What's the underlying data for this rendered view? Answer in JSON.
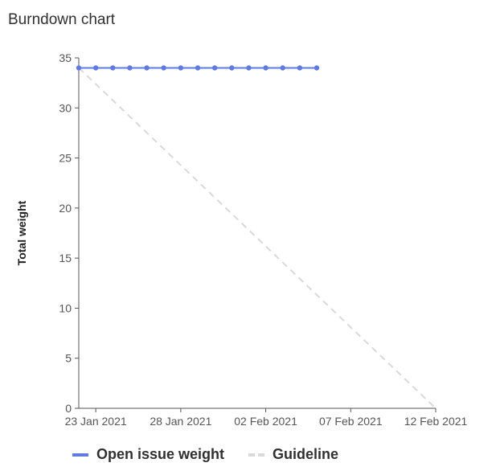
{
  "title": "Burndown chart",
  "colors": {
    "series": "#617ae2",
    "guideline": "#d9d9d9",
    "axis": "#555555"
  },
  "chart_data": {
    "type": "line",
    "title": "Burndown chart",
    "xlabel": "",
    "ylabel": "Total weight",
    "ylim": [
      0,
      35
    ],
    "y_ticks": [
      0,
      5,
      10,
      15,
      20,
      25,
      30,
      35
    ],
    "xlim": [
      "2021-01-22",
      "2021-02-12"
    ],
    "x_ticks": [
      "23 Jan 2021",
      "28 Jan 2021",
      "02 Feb 2021",
      "07 Feb 2021",
      "12 Feb 2021"
    ],
    "x_tick_dates": [
      "2021-01-23",
      "2021-01-28",
      "2021-02-02",
      "2021-02-07",
      "2021-02-12"
    ],
    "grid": false,
    "legend": "bottom",
    "series": [
      {
        "name": "Open issue weight",
        "style": "solid",
        "x": [
          "2021-01-22",
          "2021-01-23",
          "2021-01-24",
          "2021-01-25",
          "2021-01-26",
          "2021-01-27",
          "2021-01-28",
          "2021-01-29",
          "2021-01-30",
          "2021-01-31",
          "2021-02-01",
          "2021-02-02",
          "2021-02-03",
          "2021-02-04",
          "2021-02-05"
        ],
        "y": [
          34,
          34,
          34,
          34,
          34,
          34,
          34,
          34,
          34,
          34,
          34,
          34,
          34,
          34,
          34
        ]
      },
      {
        "name": "Guideline",
        "style": "dashed",
        "x": [
          "2021-01-22",
          "2021-02-12"
        ],
        "y": [
          34,
          0
        ]
      }
    ]
  }
}
